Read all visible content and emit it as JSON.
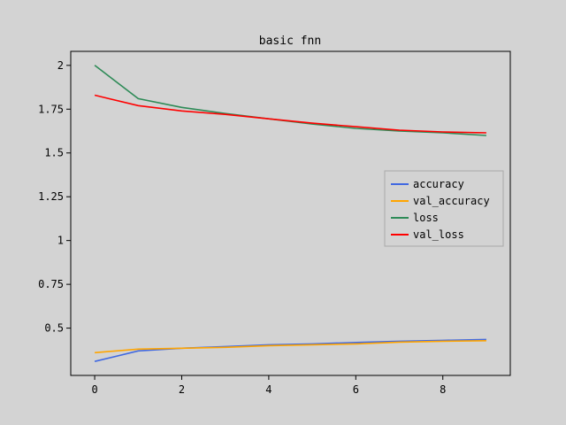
{
  "chart_data": {
    "type": "line",
    "title": "basic fnn",
    "xlabel": "",
    "ylabel": "",
    "xlim": [
      -0.55,
      9.55
    ],
    "ylim": [
      0.23,
      2.08
    ],
    "x_ticks": [
      0,
      2,
      4,
      6,
      8
    ],
    "x_tick_labels": [
      "0",
      "2",
      "4",
      "6",
      "8"
    ],
    "y_ticks": [
      0.5,
      0.75,
      1,
      1.25,
      1.5,
      1.75,
      2
    ],
    "y_tick_labels": [
      "0.5",
      "0.75",
      "1",
      "1.25",
      "1.5",
      "1.75",
      "2"
    ],
    "grid": false,
    "legend_position": "center-right",
    "x": [
      0,
      1,
      2,
      3,
      4,
      5,
      6,
      7,
      8,
      9
    ],
    "series": [
      {
        "name": "accuracy",
        "color": "#4169e1",
        "values": [
          0.31,
          0.37,
          0.385,
          0.395,
          0.405,
          0.41,
          0.418,
          0.425,
          0.43,
          0.435
        ]
      },
      {
        "name": "val_accuracy",
        "color": "#ffa500",
        "values": [
          0.36,
          0.38,
          0.385,
          0.39,
          0.4,
          0.405,
          0.41,
          0.42,
          0.425,
          0.428
        ]
      },
      {
        "name": "loss",
        "color": "#2e8b57",
        "values": [
          2.0,
          1.81,
          1.76,
          1.725,
          1.695,
          1.665,
          1.64,
          1.625,
          1.615,
          1.6
        ]
      },
      {
        "name": "val_loss",
        "color": "#ff0000",
        "values": [
          1.83,
          1.77,
          1.74,
          1.72,
          1.695,
          1.67,
          1.65,
          1.63,
          1.62,
          1.615
        ]
      }
    ]
  }
}
